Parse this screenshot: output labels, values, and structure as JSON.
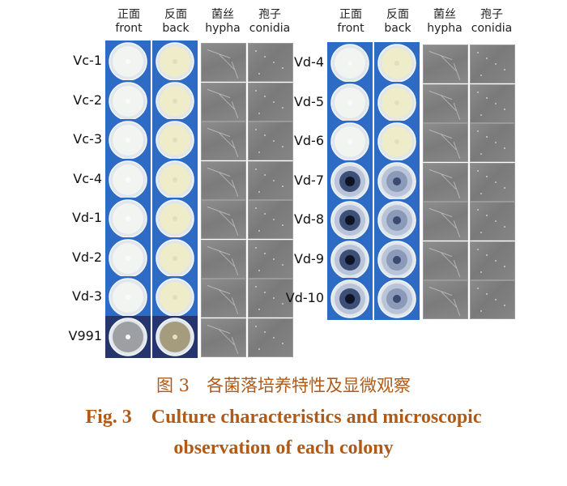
{
  "figure": {
    "headers": [
      {
        "zh": "正面",
        "en": "front"
      },
      {
        "zh": "反面",
        "en": "back"
      },
      {
        "zh": "菌丝",
        "en": "hypha"
      },
      {
        "zh": "孢子",
        "en": "conidia"
      }
    ],
    "left_rows": [
      "Vc-1",
      "Vc-2",
      "Vc-3",
      "Vc-4",
      "Vd-1",
      "Vd-2",
      "Vd-3",
      "V991"
    ],
    "right_rows": [
      "Vd-4",
      "Vd-5",
      "Vd-6",
      "Vd-7",
      "Vd-8",
      "Vd-9",
      "Vd-10"
    ]
  },
  "caption": {
    "zh": "图 3　各菌落培养特性及显微观察",
    "en_line1": "Fig. 3　Culture characteristics and microscopic",
    "en_line2": "observation of each colony"
  },
  "colors": {
    "caption": "#b05a17",
    "dish_blue": "#2f6fc9",
    "dish_dark": "#1f3f86"
  }
}
